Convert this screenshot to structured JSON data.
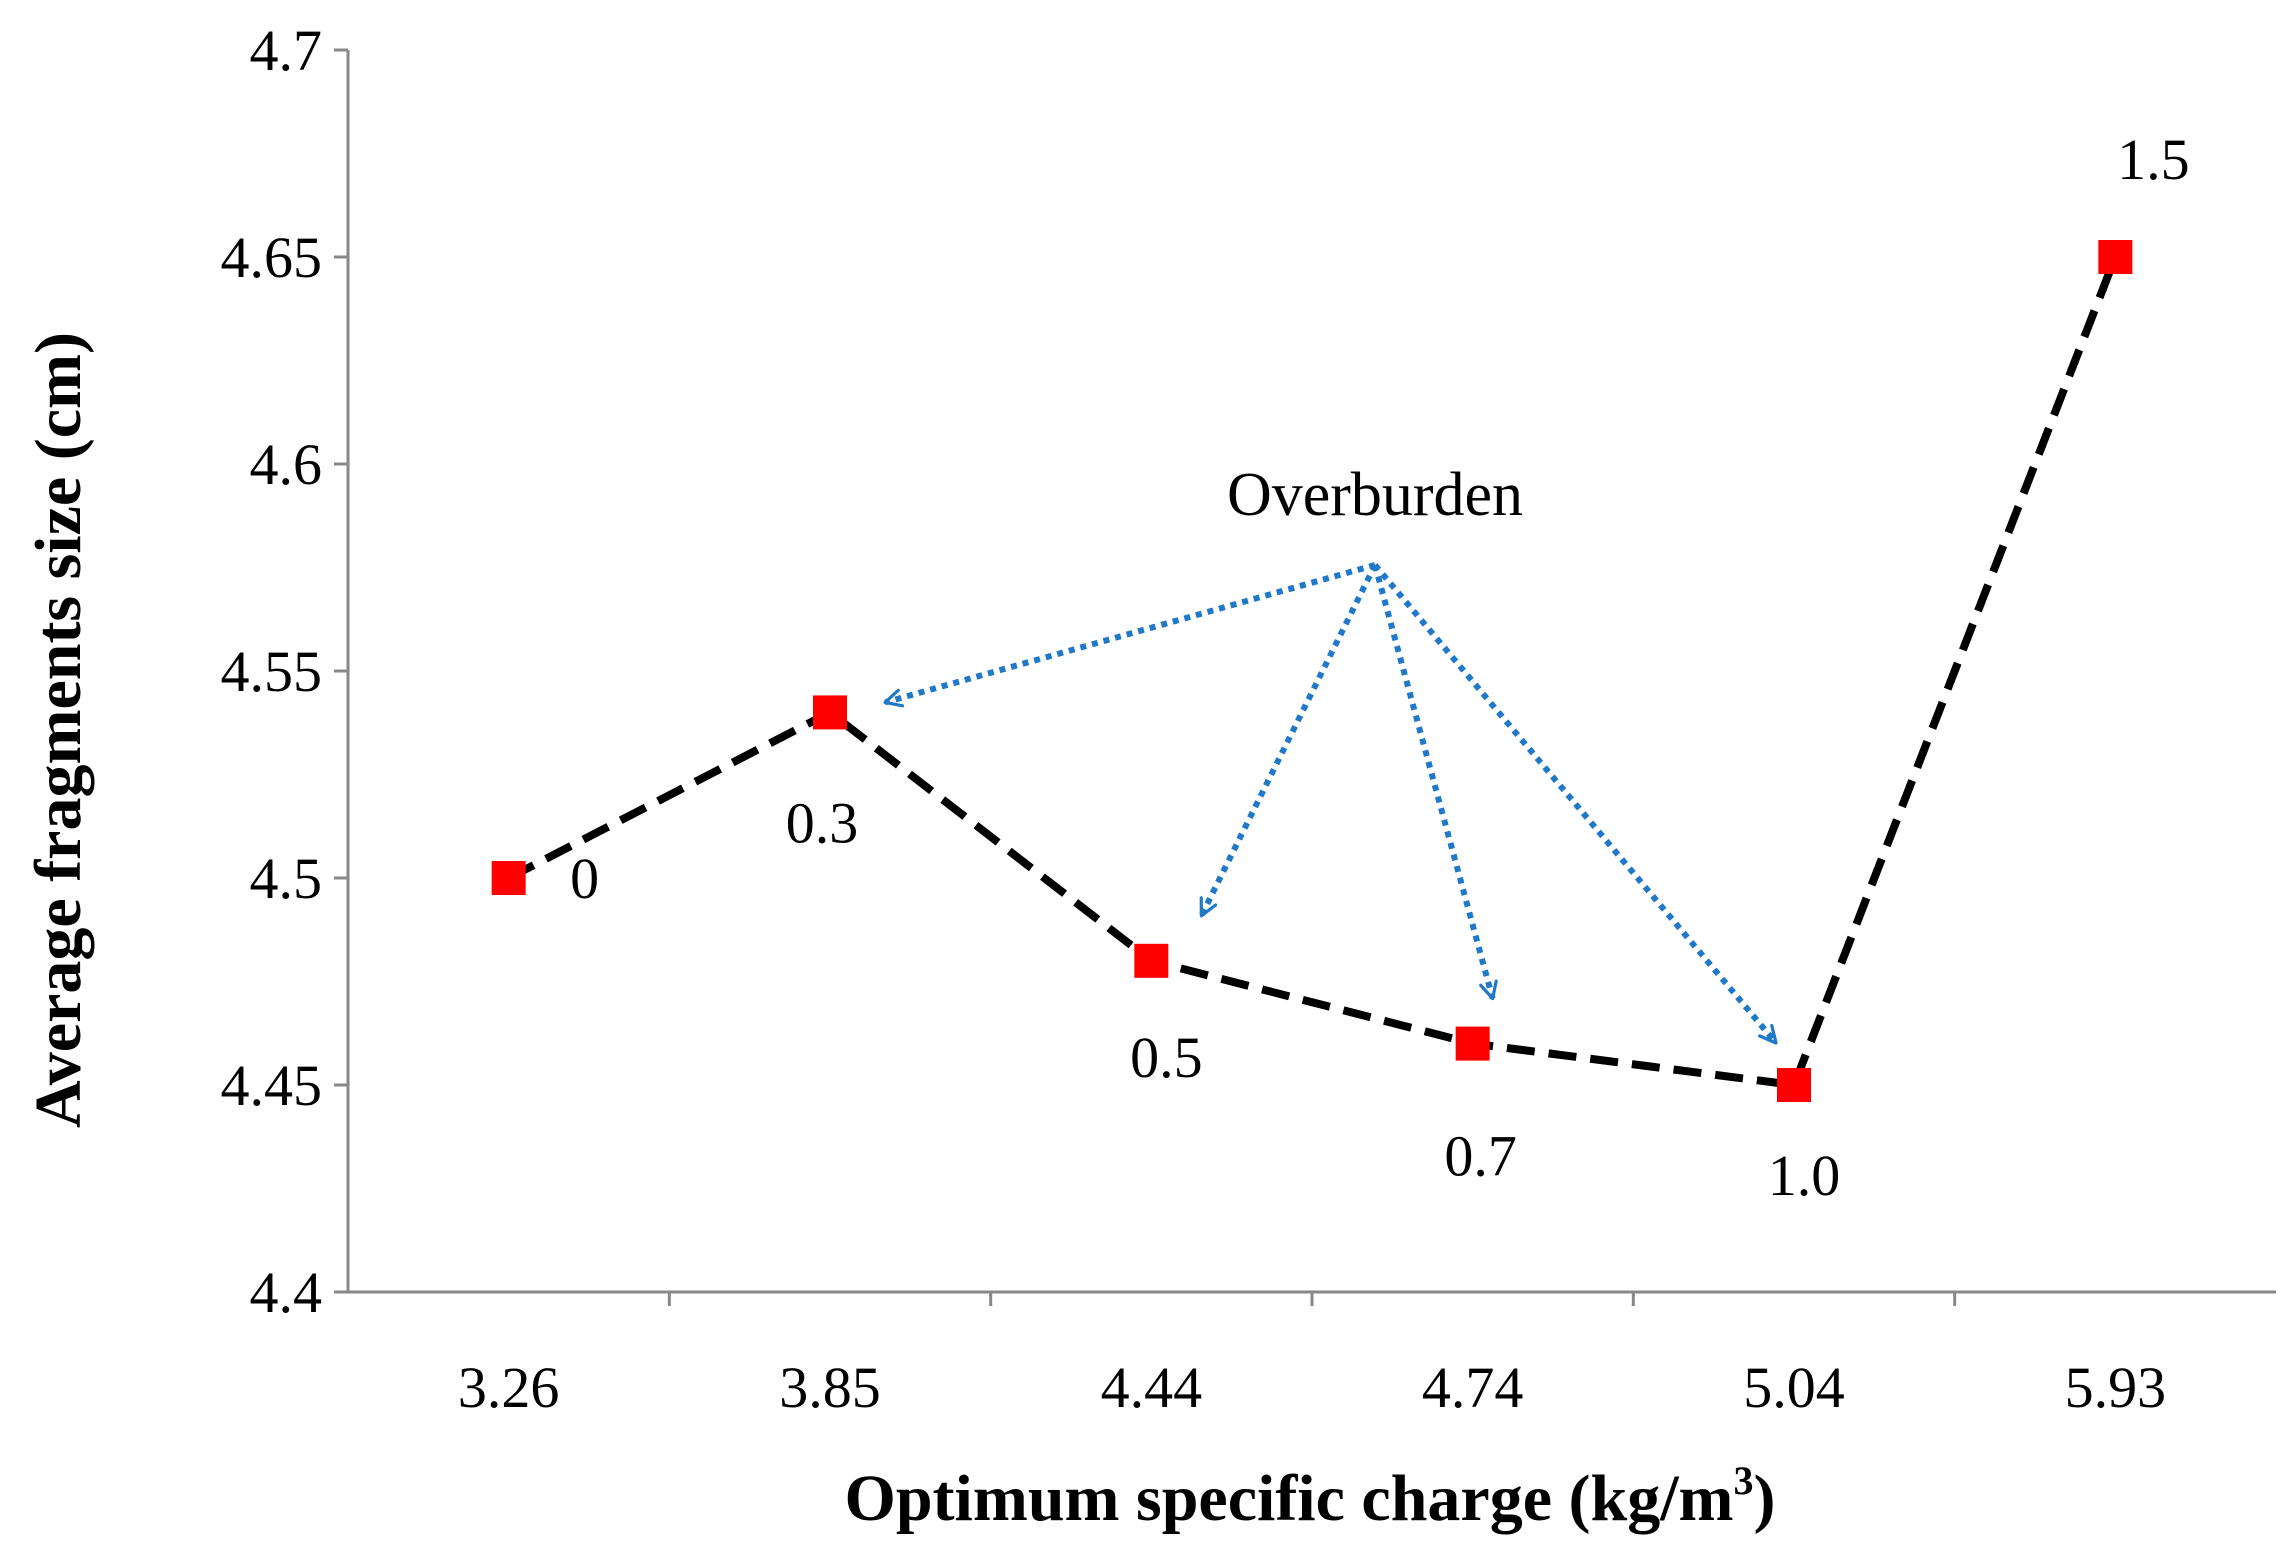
{
  "chart_data": {
    "type": "line",
    "title": "",
    "xlabel": "Optimum specific charge (kg/m",
    "xlabel_superscript": "3",
    "xlabel_close": ")",
    "ylabel": "Average fragments size (cm)",
    "categories": [
      "3.26",
      "3.85",
      "4.44",
      "4.74",
      "5.04",
      "5.93"
    ],
    "values": [
      4.5,
      4.54,
      4.48,
      4.46,
      4.45,
      4.65
    ],
    "point_labels": [
      "0",
      "0.3",
      "0.5",
      "0.7",
      "1.0",
      "1.5"
    ],
    "ylim": [
      4.4,
      4.7
    ],
    "yticks": [
      "4.4",
      "4.45",
      "4.5",
      "4.55",
      "4.6",
      "4.65",
      "4.7"
    ],
    "grid": false,
    "legend": "none",
    "series_style": {
      "line_color": "#000000",
      "line_style": "dashed",
      "marker": "square",
      "marker_color": "#ff0000"
    },
    "annotation": {
      "text": "Overburden",
      "points_to": [
        "0.3",
        "0.5",
        "0.7",
        "1.0"
      ],
      "arrow_color": "#1f78c8",
      "arrow_style": "dotted"
    }
  }
}
